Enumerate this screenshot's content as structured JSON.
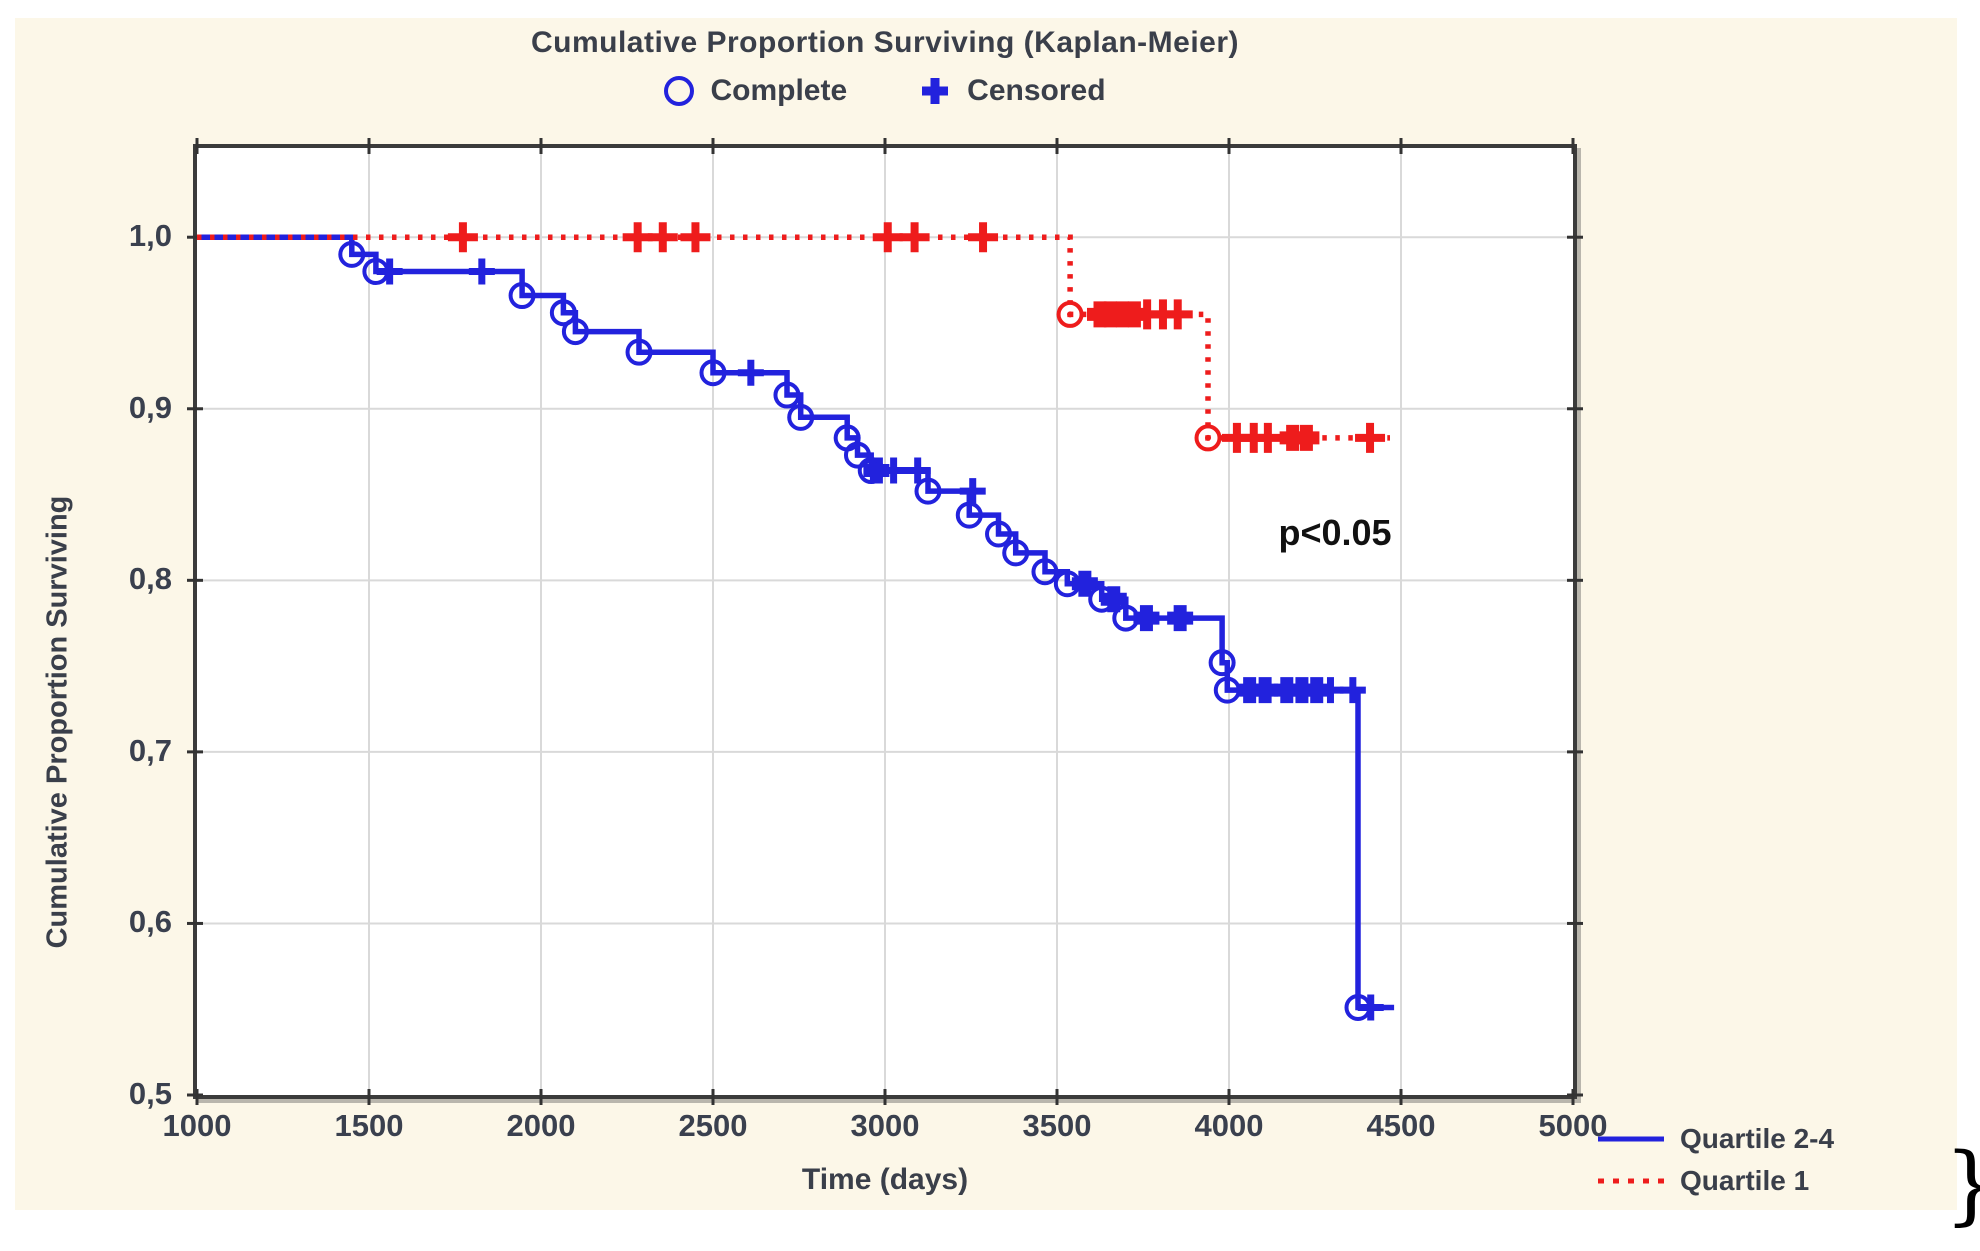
{
  "figure": {
    "annotation": "p<0.05",
    "right_edge_glyph": "}"
  },
  "chart_data": {
    "type": "line",
    "chart_family": "kaplan-meier-step-survival",
    "title": "Cumulative Proportion Surviving (Kaplan-Meier)",
    "marker_legend": [
      {
        "label": "Complete",
        "marker": "open-circle-icon"
      },
      {
        "label": "Censored",
        "marker": "plus-icon"
      }
    ],
    "xlabel": "Time (days)",
    "ylabel": "Cumulative Proportion Surviving",
    "annotation": "p<0.05",
    "xlim": [
      1000,
      5000
    ],
    "ylim": [
      0.5,
      1.052
    ],
    "grid": true,
    "legend_position": "bottom-right",
    "x_ticks": {
      "values": [
        1000,
        1500,
        2000,
        2500,
        3000,
        3500,
        4000,
        4500,
        5000
      ],
      "labels": [
        "1000",
        "1500",
        "2000",
        "2500",
        "3000",
        "3500",
        "4000",
        "4500",
        "5000"
      ]
    },
    "y_ticks": {
      "values": [
        0.5,
        0.6,
        0.7,
        0.8,
        0.9,
        1.0
      ],
      "labels": [
        "0,5",
        "0,6",
        "0,7",
        "0,8",
        "0,9",
        "1,0"
      ]
    },
    "series": [
      {
        "name": "Quartile 2-4",
        "color": "#2222dd",
        "line_style": "solid",
        "steps": [
          [
            1000,
            1.0
          ],
          [
            1450,
            0.99
          ],
          [
            1520,
            0.98
          ],
          [
            1945,
            0.966
          ],
          [
            2065,
            0.956
          ],
          [
            2100,
            0.945
          ],
          [
            2285,
            0.933
          ],
          [
            2500,
            0.921
          ],
          [
            2715,
            0.908
          ],
          [
            2755,
            0.895
          ],
          [
            2890,
            0.883
          ],
          [
            2920,
            0.873
          ],
          [
            2960,
            0.864
          ],
          [
            3125,
            0.852
          ],
          [
            3245,
            0.838
          ],
          [
            3330,
            0.827
          ],
          [
            3380,
            0.816
          ],
          [
            3465,
            0.805
          ],
          [
            3530,
            0.798
          ],
          [
            3630,
            0.789
          ],
          [
            3700,
            0.778
          ],
          [
            3980,
            0.752
          ],
          [
            3995,
            0.736
          ],
          [
            4375,
            0.551
          ],
          [
            4480,
            0.551
          ]
        ],
        "complete_events": [
          [
            1450,
            0.99
          ],
          [
            1520,
            0.98
          ],
          [
            1945,
            0.966
          ],
          [
            2065,
            0.956
          ],
          [
            2100,
            0.945
          ],
          [
            2285,
            0.933
          ],
          [
            2500,
            0.921
          ],
          [
            2715,
            0.908
          ],
          [
            2755,
            0.895
          ],
          [
            2890,
            0.883
          ],
          [
            2920,
            0.873
          ],
          [
            2960,
            0.864
          ],
          [
            3125,
            0.852
          ],
          [
            3245,
            0.838
          ],
          [
            3330,
            0.827
          ],
          [
            3380,
            0.816
          ],
          [
            3465,
            0.805
          ],
          [
            3530,
            0.798
          ],
          [
            3630,
            0.789
          ],
          [
            3700,
            0.778
          ],
          [
            3980,
            0.752
          ],
          [
            3995,
            0.736
          ],
          [
            4375,
            0.551
          ]
        ],
        "censored": [
          [
            1560,
            0.98
          ],
          [
            1828,
            0.98
          ],
          [
            2610,
            0.921
          ],
          [
            3025,
            0.864
          ],
          [
            3095,
            0.864
          ],
          [
            3255,
            0.852
          ],
          [
            4295,
            0.736
          ],
          [
            4360,
            0.736
          ],
          [
            4412,
            0.551
          ]
        ],
        "censored_heavy": [
          [
            2975,
            0.864
          ],
          [
            3581,
            0.798
          ],
          [
            3665,
            0.789
          ],
          [
            3760,
            0.778
          ],
          [
            3858,
            0.778
          ],
          [
            4060,
            0.736
          ],
          [
            4105,
            0.736
          ],
          [
            4168,
            0.736
          ],
          [
            4212,
            0.736
          ],
          [
            4255,
            0.736
          ]
        ]
      },
      {
        "name": "Quartile 1",
        "color": "#ee1c1c",
        "line_style": "dotted",
        "steps": [
          [
            1000,
            1.0
          ],
          [
            3538,
            0.955
          ],
          [
            3939,
            0.883
          ],
          [
            4468,
            0.883
          ]
        ],
        "complete_events": [
          [
            3538,
            0.955
          ],
          [
            3939,
            0.883
          ]
        ],
        "censored": [
          [
            1773,
            1.0
          ],
          [
            2281,
            1.0
          ],
          [
            2354,
            1.0
          ],
          [
            2449,
            1.0
          ],
          [
            3008,
            1.0
          ],
          [
            3086,
            1.0
          ],
          [
            3285,
            1.0
          ],
          [
            3762,
            0.955
          ],
          [
            3808,
            0.955
          ],
          [
            3851,
            0.955
          ],
          [
            4023,
            0.883
          ],
          [
            4072,
            0.883
          ],
          [
            4113,
            0.883
          ],
          [
            4410,
            0.883
          ]
        ],
        "censored_heavy": [
          [
            3625,
            0.955
          ],
          [
            3655,
            0.955
          ],
          [
            3690,
            0.955
          ],
          [
            3725,
            0.955
          ],
          [
            4185,
            0.883
          ],
          [
            4225,
            0.883
          ]
        ]
      }
    ]
  }
}
